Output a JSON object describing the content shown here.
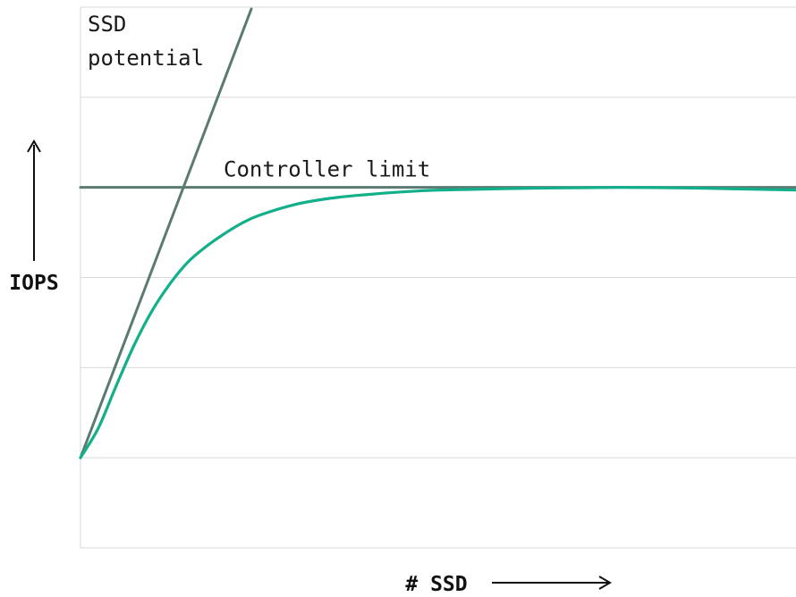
{
  "chart_data": {
    "type": "line",
    "title": "",
    "xlabel": "# SSD",
    "ylabel": "IOPS",
    "grid": true,
    "xlim": [
      0,
      8
    ],
    "ylim": [
      -1,
      5
    ],
    "series": [
      {
        "name": "SSD potential",
        "color": "#5a7a72",
        "x": [
          0,
          1.91
        ],
        "y": [
          0,
          4.98
        ]
      },
      {
        "name": "Controller limit",
        "color": "#5a7a72",
        "x": [
          0,
          8
        ],
        "y": [
          3,
          3
        ]
      },
      {
        "name": "",
        "color": "#12b08a",
        "x": [
          0,
          0.2,
          0.4,
          0.6,
          0.8,
          1.0,
          1.2,
          1.4,
          1.6,
          1.8,
          2.0,
          2.4,
          2.8,
          3.2,
          3.6,
          4.0,
          4.5,
          5.0,
          5.5,
          6.0,
          6.5,
          7.0,
          7.5,
          8.0
        ],
        "y": [
          0,
          0.33,
          0.8,
          1.25,
          1.63,
          1.93,
          2.17,
          2.34,
          2.48,
          2.6,
          2.69,
          2.81,
          2.88,
          2.92,
          2.95,
          2.97,
          2.98,
          2.99,
          2.995,
          3.0,
          2.997,
          2.99,
          2.98,
          2.97
        ]
      }
    ],
    "annotations": [
      {
        "text_lines": [
          "SSD",
          "potential"
        ],
        "x": 0.08,
        "y": 4.73
      },
      {
        "text": "Controller limit",
        "x": 1.6,
        "y": 3.12
      }
    ]
  }
}
